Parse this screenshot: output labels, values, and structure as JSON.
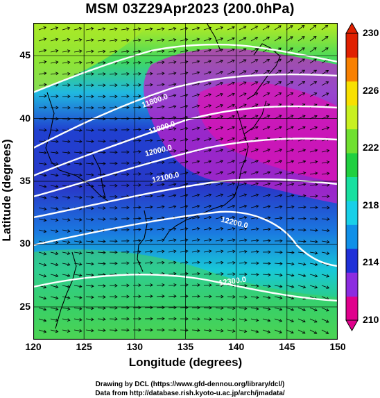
{
  "title": "MSM 03Z29Apr2023 (200.0hPa)",
  "map": {
    "xlabel": "Longitude (degrees)",
    "ylabel": "Latitude  (degrees)",
    "xticks": [
      "120",
      "125",
      "130",
      "135",
      "140",
      "145",
      "150"
    ],
    "yticks": [
      "25",
      "30",
      "35",
      "40",
      "45"
    ],
    "xlim": [
      120,
      150
    ],
    "ylim": [
      22.4,
      47.6
    ],
    "contour_labels": [
      "11800.0",
      "11900.0",
      "12000.0",
      "12100.0",
      "12200.0",
      "12300.0"
    ],
    "variables": {
      "shading": "temperature (K)",
      "contours": "geopotential height (m)",
      "vectors": "wind"
    }
  },
  "colorbar": {
    "ticks": [
      "230",
      "226",
      "222",
      "218",
      "214",
      "210"
    ],
    "range": [
      210,
      230
    ],
    "colors": [
      "#e0008c",
      "#8c2ce0",
      "#2030d8",
      "#1090e8",
      "#18d0e8",
      "#18e0a0",
      "#20d040",
      "#70e030",
      "#c8f020",
      "#f8e000",
      "#f88000",
      "#e02000"
    ]
  },
  "credits": {
    "line1": "Drawing by DCL (https://www.gfd-dennou.org/library/dcl/)",
    "line2": "Data from http://database.rish.kyoto-u.ac.jp/arch/jmadata/"
  }
}
